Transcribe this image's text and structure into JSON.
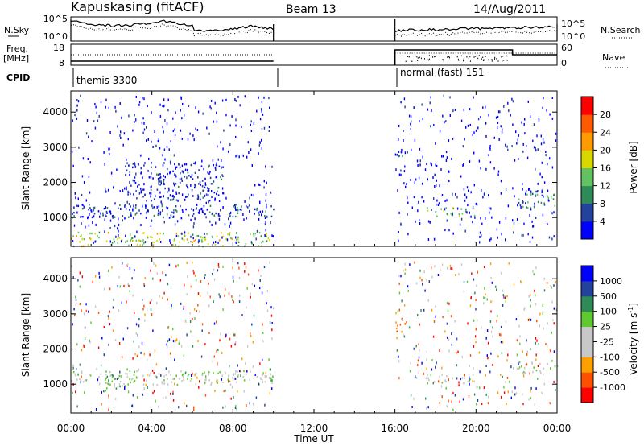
{
  "header": {
    "station": "Kapuskasing (fitACF)",
    "beam": "Beam 13",
    "date": "14/Aug/2011"
  },
  "labels": {
    "nsky": "N.Sky",
    "freq_line1": "Freq.",
    "freq_line2": "[MHz]",
    "cpid": "CPID",
    "nsearch": "N.Search",
    "nave": "Nave",
    "xlabel": "Time UT",
    "ylabel_top": "Slant Range [km]",
    "ylabel_bottom": "Slant Range [km]",
    "power_label": "Power [dB]",
    "velocity_label": "Velocity  [m s",
    "velocity_exp": "-1",
    "velocity_close": "]"
  },
  "cpid_entries": [
    "themis 3300",
    "normal (fast) 151"
  ],
  "noise_axis": {
    "left_ticks": [
      "10^5",
      "10^0"
    ],
    "right_ticks": [
      "10^5",
      "10^0"
    ]
  },
  "freq_axis": {
    "left_ticks": [
      "18",
      "8"
    ],
    "right_ticks": [
      "60",
      "0"
    ]
  },
  "colors": {
    "power": [
      "#0000ff",
      "#23429e",
      "#2e8b57",
      "#62c262",
      "#d8d800",
      "#ff9a00",
      "#ff5a00",
      "#ff0000"
    ],
    "velocity": [
      "#ff0000",
      "#ff5000",
      "#ffa000",
      "#c8c8c8",
      "#c8c8c8",
      "#60c830",
      "#2e8b57",
      "#23429e",
      "#0000ff"
    ]
  },
  "colorbars": {
    "power": {
      "ticks": [
        "4",
        "8",
        "12",
        "16",
        "20",
        "24",
        "28"
      ]
    },
    "velocity": {
      "ticks": [
        "-1000",
        "-500",
        "-100",
        "-25",
        "25",
        "100",
        "500",
        "1000"
      ]
    }
  },
  "chart_data": [
    {
      "type": "heatmap",
      "title": "Power",
      "xlabel": "Time UT",
      "ylabel": "Slant Range [km]",
      "x_ticks": [
        "00:00",
        "04:00",
        "08:00",
        "12:00",
        "16:00",
        "20:00",
        "00:00"
      ],
      "xlim_hours": [
        0,
        24
      ],
      "y_ticks": [
        1000,
        2000,
        3000,
        4000
      ],
      "ylim": [
        180,
        4600
      ],
      "data_windows_hours": [
        [
          0,
          10
        ],
        [
          16,
          24
        ]
      ],
      "features": [
        {
          "t": [
            0,
            10
          ],
          "range_km": [
            1000,
            1400
          ],
          "power_dB": 6
        },
        {
          "t": [
            2.5,
            7.5
          ],
          "range_km": [
            1500,
            2600
          ],
          "power_dB": 4
        },
        {
          "t": [
            0,
            10
          ],
          "range_km": [
            200,
            600
          ],
          "power_dB": 16
        },
        {
          "t": [
            16,
            16.6
          ],
          "range_km": [
            2600,
            2900
          ],
          "power_dB": 6
        },
        {
          "t": [
            17.5,
            20
          ],
          "range_km": [
            1050,
            1300
          ],
          "power_dB": 14
        },
        {
          "t": [
            22,
            24
          ],
          "range_km": [
            1300,
            1800
          ],
          "power_dB": 10
        }
      ]
    },
    {
      "type": "heatmap",
      "title": "Velocity",
      "xlabel": "Time UT",
      "ylabel": "Slant Range [km]",
      "x_ticks": [
        "00:00",
        "04:00",
        "08:00",
        "12:00",
        "16:00",
        "20:00",
        "00:00"
      ],
      "xlim_hours": [
        0,
        24
      ],
      "y_ticks": [
        1000,
        2000,
        3000,
        4000
      ],
      "ylim": [
        180,
        4600
      ],
      "data_windows_hours": [
        [
          0,
          10
        ],
        [
          16,
          24
        ]
      ],
      "features": [
        {
          "t": [
            0,
            10
          ],
          "range_km": [
            1000,
            1400
          ],
          "velocity_ms": 0
        },
        {
          "t": [
            1.5,
            2.5
          ],
          "range_km": [
            800,
            1300
          ],
          "velocity_ms": 100
        },
        {
          "t": [
            16,
            16.6
          ],
          "range_km": [
            2500,
            2900
          ],
          "velocity_ms": -500
        },
        {
          "t": [
            17.5,
            20
          ],
          "range_km": [
            1050,
            1300
          ],
          "velocity_ms": 0
        },
        {
          "t": [
            22,
            24
          ],
          "range_km": [
            1300,
            1700
          ],
          "velocity_ms": 0
        }
      ]
    }
  ]
}
